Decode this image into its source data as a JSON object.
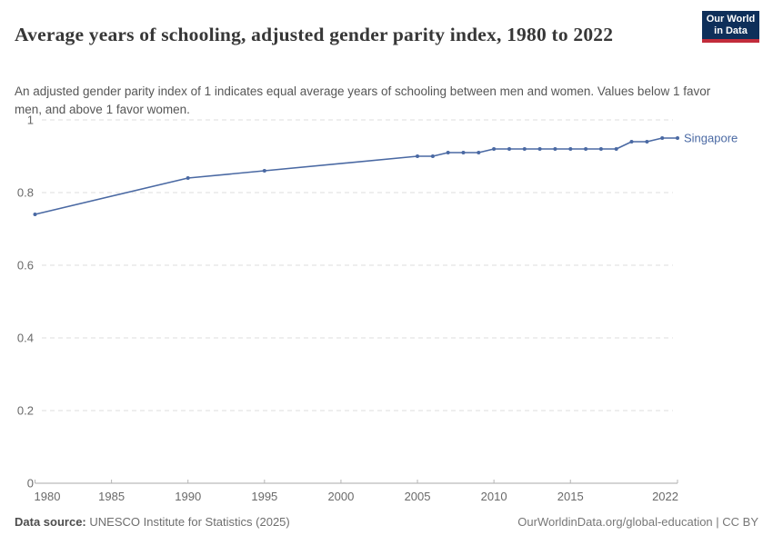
{
  "header": {
    "title": "Average years of schooling, adjusted gender parity index, 1980 to 2022",
    "subtitle": "An adjusted gender parity index of 1 indicates equal average years of schooling between men and women. Values below 1 favor men, and above 1 favor women."
  },
  "logo": {
    "line1": "Our World",
    "line2": "in Data",
    "bg_color": "#0e2f5a",
    "bar_color": "#c22c3b"
  },
  "footer": {
    "data_source_label": "Data source:",
    "data_source_value": "UNESCO Institute for Statistics (2025)",
    "credit": "OurWorldinData.org/global-education | CC BY"
  },
  "colors": {
    "accent": "#4a69a3",
    "grid": "#dcdcdc",
    "axis": "#a9a9a9",
    "tick": "#b5b5b5",
    "tick_label": "#696969"
  },
  "chart_data": {
    "type": "line",
    "title": "Average years of schooling, adjusted gender parity index, 1980 to 2022",
    "xlabel": "",
    "ylabel": "",
    "xlim": [
      1980,
      2022
    ],
    "ylim": [
      0,
      1
    ],
    "x_ticks": [
      1980,
      1985,
      1990,
      1995,
      2000,
      2005,
      2010,
      2015,
      2022
    ],
    "y_ticks": [
      0,
      0.2,
      0.4,
      0.6,
      0.8,
      1
    ],
    "grid": "horizontal-dashed",
    "legend_position": "line-end-label",
    "series": [
      {
        "name": "Singapore",
        "color": "#4a69a3",
        "x": [
          1980,
          1990,
          1995,
          2005,
          2006,
          2007,
          2008,
          2009,
          2010,
          2011,
          2012,
          2013,
          2014,
          2015,
          2016,
          2017,
          2018,
          2019,
          2020,
          2021,
          2022
        ],
        "values": [
          0.74,
          0.84,
          0.86,
          0.9,
          0.9,
          0.91,
          0.91,
          0.91,
          0.92,
          0.92,
          0.92,
          0.92,
          0.92,
          0.92,
          0.92,
          0.92,
          0.92,
          0.94,
          0.94,
          0.95,
          0.95
        ]
      }
    ]
  }
}
